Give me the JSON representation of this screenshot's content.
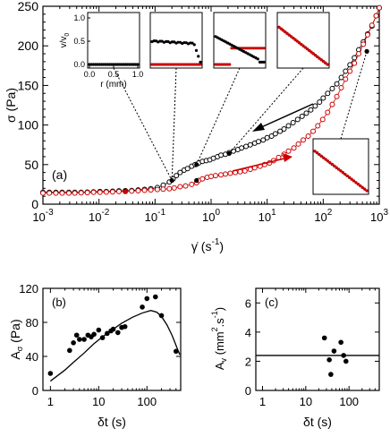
{
  "chart_data": [
    {
      "id": "a",
      "type": "scatter",
      "panel_label": "(a)",
      "xlabel_main": "γ̇ (s",
      "xlabel_exp": "-1",
      "xlabel_close": ")",
      "ylabel": "σ (Pa)",
      "xscale": "log",
      "xlim": [
        0.001,
        1000
      ],
      "ylim": [
        0,
        250
      ],
      "x_ticks": [
        {
          "v": 0.001,
          "b": "10",
          "e": "-3"
        },
        {
          "v": 0.01,
          "b": "10",
          "e": "-2"
        },
        {
          "v": 0.1,
          "b": "10",
          "e": "-1"
        },
        {
          "v": 1,
          "b": "10",
          "e": "0"
        },
        {
          "v": 10,
          "b": "10",
          "e": "1"
        },
        {
          "v": 100,
          "b": "10",
          "e": "2"
        },
        {
          "v": 1000,
          "b": "10",
          "e": "3"
        }
      ],
      "y_ticks": [
        0,
        50,
        100,
        150,
        200,
        250
      ],
      "series": [
        {
          "color": "#000000",
          "direction": "decreasing shear rate (upper branch)",
          "x": [
            0.001,
            0.0013,
            0.0017,
            0.0022,
            0.0029,
            0.0037,
            0.0048,
            0.0062,
            0.008,
            0.0104,
            0.0135,
            0.0175,
            0.0227,
            0.0295,
            0.0383,
            0.05,
            0.065,
            0.084,
            0.11,
            0.14,
            0.18,
            0.21,
            0.24,
            0.28,
            0.33,
            0.38,
            0.45,
            0.52,
            0.6,
            0.7,
            0.82,
            0.95,
            1.1,
            1.3,
            1.5,
            1.8,
            2.1,
            2.5,
            3,
            3.5,
            4.2,
            5,
            6,
            7,
            8.5,
            10,
            12,
            14,
            17,
            20,
            24,
            29,
            35,
            42,
            50,
            60,
            72,
            86,
            100,
            120,
            145,
            175,
            210,
            250,
            300,
            360,
            430,
            520,
            620,
            740,
            880,
            1000
          ],
          "y": [
            15,
            15,
            15,
            15,
            15,
            15,
            15,
            15.3,
            15.6,
            16,
            16,
            16.4,
            16.8,
            17,
            17.3,
            18,
            18.6,
            19.5,
            21,
            24,
            28,
            32,
            36,
            40,
            43,
            45,
            48,
            50,
            52,
            54,
            55,
            56,
            58,
            60,
            62,
            63,
            65,
            67,
            69,
            71,
            73,
            75,
            77,
            79,
            81,
            84,
            86,
            89,
            92,
            95,
            99,
            103,
            107,
            111,
            115,
            119,
            124,
            129,
            134,
            140,
            146,
            152,
            160,
            168,
            176,
            185,
            195,
            205,
            215,
            225,
            238,
            248
          ]
        },
        {
          "color": "#cc0000",
          "direction": "increasing shear rate (lower branch)",
          "x": [
            0.001,
            0.0013,
            0.0017,
            0.0022,
            0.0029,
            0.0037,
            0.0048,
            0.0062,
            0.008,
            0.0104,
            0.0135,
            0.0175,
            0.0227,
            0.0295,
            0.0383,
            0.05,
            0.065,
            0.084,
            0.11,
            0.14,
            0.18,
            0.22,
            0.28,
            0.35,
            0.45,
            0.55,
            0.6,
            0.7,
            0.85,
            1,
            1.2,
            1.5,
            1.8,
            2.2,
            2.7,
            3.3,
            4,
            5,
            6,
            7.5,
            9,
            11,
            13,
            16,
            20,
            24,
            30,
            36,
            44,
            54,
            66,
            80,
            98,
            120,
            145,
            175,
            210,
            250,
            300,
            360,
            430,
            520,
            620,
            740,
            880,
            1000
          ],
          "y": [
            14,
            14,
            14,
            14,
            14,
            14,
            14.3,
            14.6,
            15,
            15,
            15.3,
            15.6,
            16,
            16,
            16.5,
            17,
            17.5,
            18,
            18.5,
            19,
            19.5,
            20.5,
            22,
            23,
            25,
            27,
            30,
            32,
            34,
            35,
            36,
            37,
            38,
            39,
            40,
            41,
            42,
            44,
            46,
            48,
            50,
            52,
            55,
            59,
            63,
            67,
            71,
            76,
            81,
            86,
            92,
            99,
            107,
            116,
            126,
            136,
            147,
            158,
            168,
            178,
            190,
            202,
            214,
            226,
            238,
            248
          ]
        }
      ],
      "highlight_points": [
        {
          "x": 0.03,
          "y": 17,
          "color": "#000000"
        },
        {
          "x": 0.03,
          "y": 16,
          "color": "#cc0000"
        },
        {
          "x": 0.2,
          "y": 30,
          "color": "#000000"
        },
        {
          "x": 0.55,
          "y": 50,
          "color": "#000000"
        },
        {
          "x": 0.55,
          "y": 30,
          "color": "#000000"
        },
        {
          "x": 2.1,
          "y": 64,
          "color": "#000000"
        },
        {
          "x": 600,
          "y": 193,
          "color": "#000000"
        }
      ],
      "insets": [
        {
          "name": "inset-1",
          "ylabel_main": "v/v",
          "ylabel_sub": "0",
          "xlabel": "r (mm)",
          "x_ticks": [
            "0.0",
            "0.5",
            "1.0"
          ],
          "y_ticks": [
            "0.0",
            "0.5",
            "1.0"
          ]
        },
        {
          "name": "inset-2"
        },
        {
          "name": "inset-3"
        },
        {
          "name": "inset-4"
        },
        {
          "name": "inset-5"
        }
      ]
    },
    {
      "id": "b",
      "type": "scatter",
      "panel_label": "(b)",
      "xlabel": "δt (s)",
      "ylabel_main": "A",
      "ylabel_sub": "σ",
      "ylabel_rest": " (Pa)",
      "xscale": "log",
      "xlim": [
        0.7,
        500
      ],
      "ylim": [
        0,
        120
      ],
      "x_ticks": [
        {
          "v": 1,
          "label": "1"
        },
        {
          "v": 10,
          "label": "10"
        },
        {
          "v": 100,
          "label": "100"
        }
      ],
      "y_ticks": [
        0,
        40,
        80,
        120
      ],
      "points": {
        "x": [
          1,
          2.5,
          3,
          3.5,
          4,
          5,
          6,
          7,
          8,
          10,
          12,
          15,
          18,
          20,
          25,
          30,
          35,
          80,
          100,
          150,
          200,
          400
        ],
        "y": [
          20,
          47,
          56,
          65,
          60,
          60,
          65,
          63,
          66,
          71,
          62,
          67,
          70,
          72,
          68,
          74,
          75,
          98,
          108,
          110,
          88,
          46
        ]
      },
      "fit_curve": {
        "x": [
          1,
          2,
          3,
          5,
          8,
          12,
          20,
          30,
          50,
          80,
          120,
          160,
          200,
          260,
          330,
          420,
          480
        ],
        "y": [
          11,
          24,
          33,
          44,
          55,
          63,
          72,
          79,
          86,
          91,
          94,
          92,
          87,
          77,
          65,
          50,
          42
        ]
      }
    },
    {
      "id": "c",
      "type": "scatter",
      "panel_label": "(c)",
      "xlabel": "δt (s)",
      "ylabel_main": "A",
      "ylabel_sub": "v",
      "ylabel_rest": " (mm",
      "ylabel_exp1": "2",
      "ylabel_mid": ".s",
      "ylabel_exp2": "-1",
      "ylabel_close": ")",
      "xscale": "log",
      "xlim": [
        0.7,
        500
      ],
      "ylim": [
        0,
        7
      ],
      "x_ticks": [
        {
          "v": 1,
          "label": "1"
        },
        {
          "v": 10,
          "label": "10"
        },
        {
          "v": 100,
          "label": "100"
        }
      ],
      "y_ticks": [
        0,
        2,
        4,
        6
      ],
      "points": {
        "x": [
          27,
          35,
          38,
          45,
          65,
          75,
          85
        ],
        "y": [
          3.6,
          2.1,
          1.1,
          2.7,
          3.3,
          2.4,
          2.0
        ]
      },
      "mean_line": 2.4
    }
  ]
}
